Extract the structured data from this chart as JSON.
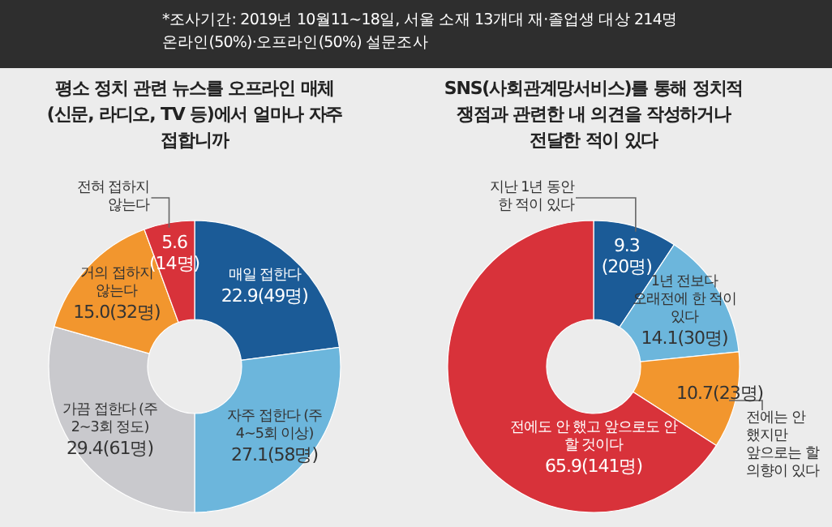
{
  "chart_data": [
    {
      "type": "donut",
      "title": "평소 정치 관련 뉴스를 오프라인 매체(신문, 라디오, TV 등)에서 얼마나 자주 접합니까",
      "annotations": [
        "*조사기간: 2019년 10월11~18일, 서울 소재 13개대 재·졸업생 대상 214명",
        "온라인(50%)·오프라인(50%) 설문조사"
      ],
      "categories": [
        "매일 접한다",
        "자주 접한다 (주 4~5회 이상)",
        "가끔 접한다 (주 2~3회 정도)",
        "거의 접하지 않는다",
        "전혀 접하지 않는다"
      ],
      "values": [
        22.9,
        27.1,
        29.4,
        15.0,
        5.6
      ],
      "value_labels": [
        "22.9(49명)",
        "27.1(58명)",
        "29.4(61명)",
        "15.0(32명)",
        "5.6 (14명)"
      ],
      "colors": [
        "#1b5b97",
        "#6cb6dc",
        "#c9c9cd",
        "#f2962e",
        "#d8323a"
      ]
    },
    {
      "type": "donut",
      "title": "SNS(사회관계망서비스)를 통해 정치적 쟁점과 관련한 내 의견을 작성하거나 전달한 적이 있다",
      "categories": [
        "지난 1년 동안 한 적이 있다",
        "1년 전보다 오래전에 한 적이 있다",
        "전에는 안 했지만 앞으로는 할 의향이 있다",
        "전에도 안 했고 앞으로도 안 할 것이다"
      ],
      "values": [
        9.3,
        14.1,
        10.7,
        65.9
      ],
      "value_labels": [
        "9.3 (20명)",
        "14.1(30명)",
        "10.7(23명)",
        "65.9(141명)"
      ],
      "colors": [
        "#1b5b97",
        "#6cb6dc",
        "#f2962e",
        "#d8323a"
      ]
    }
  ]
}
